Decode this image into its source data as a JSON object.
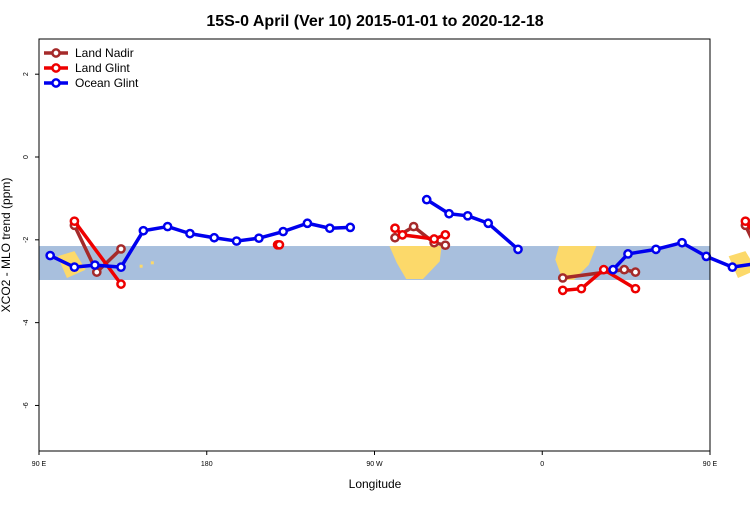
{
  "chart_data": {
    "type": "line",
    "title": "15S-0 April (Ver 10)   2015-01-01 to 2020-12-18",
    "xlabel": "Longitude",
    "ylabel": "XCO2 - MLO trend (ppm)",
    "xlim": [
      90,
      450
    ],
    "ylim": [
      -7.1,
      2.85
    ],
    "x_ticks": [
      {
        "value": 90,
        "label": "90 E"
      },
      {
        "value": 180,
        "label": "180"
      },
      {
        "value": 270,
        "label": "90 W"
      },
      {
        "value": 360,
        "label": "0"
      },
      {
        "value": 450,
        "label": "90 E"
      },
      {
        "value": 540,
        "label": "180"
      }
    ],
    "y_ticks": [
      {
        "value": 2,
        "label": "2"
      },
      {
        "value": 0,
        "label": "0"
      },
      {
        "value": -2,
        "label": "-2"
      },
      {
        "value": -4,
        "label": "-4"
      },
      {
        "value": -6,
        "label": "-6"
      }
    ],
    "band": {
      "lat_top": -2.15,
      "lat_bottom": -2.97,
      "color": "#a8bfdd",
      "land_color": "#fcd96a"
    },
    "legend": {
      "position": "top-left"
    },
    "series": [
      {
        "name": "Land Nadir",
        "color": "#a52a2a",
        "segments": [
          {
            "x": [
              109,
              121,
              134
            ],
            "y": [
              -1.65,
              -2.78,
              -2.22
            ]
          },
          {
            "x": [
              281,
              291,
              302,
              308
            ],
            "y": [
              -1.95,
              -1.68,
              -2.07,
              -2.13
            ]
          },
          {
            "x": [
              371,
              404,
              410
            ],
            "y": [
              -2.92,
              -2.72,
              -2.78
            ]
          },
          {
            "x": [
              469,
              481,
              494
            ],
            "y": [
              -1.65,
              -2.78,
              -2.22
            ]
          }
        ]
      },
      {
        "name": "Land Glint",
        "color": "#ee0000",
        "segments": [
          {
            "x": [
              109,
              134
            ],
            "y": [
              -1.55,
              -3.07
            ]
          },
          {
            "x": [
              281,
              285,
              302,
              308
            ],
            "y": [
              -1.72,
              -1.88,
              -1.98,
              -1.88
            ]
          },
          {
            "x": [
              218,
              219
            ],
            "y": [
              -2.12,
              -2.12
            ]
          },
          {
            "x": [
              371,
              381,
              393,
              410
            ],
            "y": [
              -3.22,
              -3.18,
              -2.72,
              -3.18
            ]
          },
          {
            "x": [
              469,
              494
            ],
            "y": [
              -1.55,
              -3.07
            ]
          }
        ]
      },
      {
        "name": "Ocean Glint",
        "color": "#0000ee",
        "segments": [
          {
            "x": [
              96,
              109,
              120,
              134,
              146,
              159,
              171,
              184,
              196,
              208,
              221,
              234,
              246,
              257
            ],
            "y": [
              -2.38,
              -2.66,
              -2.61,
              -2.66,
              -1.78,
              -1.68,
              -1.85,
              -1.95,
              -2.03,
              -1.96,
              -1.8,
              -1.6,
              -1.72,
              -1.7
            ]
          },
          {
            "x": [
              298,
              310,
              320,
              331,
              347
            ],
            "y": [
              -1.03,
              -1.37,
              -1.42,
              -1.6,
              -2.23
            ]
          },
          {
            "x": [
              398,
              406,
              421,
              435,
              448,
              462,
              474,
              486,
              506,
              518
            ],
            "y": [
              -2.72,
              -2.34,
              -2.23,
              -2.07,
              -2.4,
              -2.66,
              -2.58,
              -2.66,
              -1.78,
              -1.68
            ]
          }
        ]
      }
    ]
  }
}
